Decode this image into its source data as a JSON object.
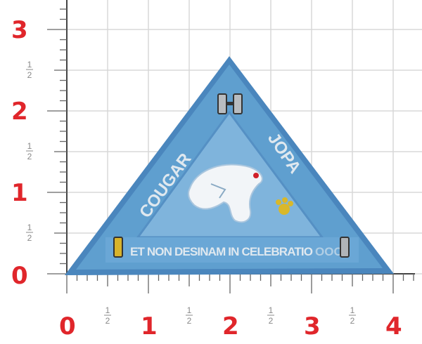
{
  "ruler": {
    "vertical_labels": [
      "3",
      "2",
      "1",
      "0"
    ],
    "horizontal_labels": [
      "0",
      "1",
      "2",
      "3",
      "4"
    ],
    "half_numerator": "1",
    "half_denominator": "2",
    "label_color": "#e0262b",
    "unit": "inch"
  },
  "patch": {
    "shape": "triangle",
    "left_text": "COUGAR",
    "right_text": "JOPA",
    "bottom_text": "ET NON DESINAM IN CELEBRATIO",
    "bottom_text_tail": "OOO",
    "base_color": "#5f9fcf",
    "border_color": "#4a86bd",
    "inner_color": "#8cbde0",
    "thread_color": "#e4ecf2",
    "icon": "cougar-head-icon",
    "accents": [
      "silver-bar-icon",
      "gold-bar-icon",
      "silver-bar-icon",
      "gold-paw-icon"
    ]
  }
}
